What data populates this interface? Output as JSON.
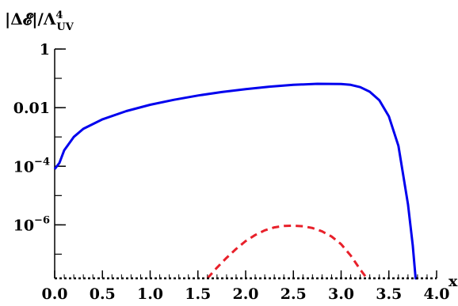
{
  "chart_data": {
    "type": "line",
    "ylabel": "|ΔE|/Λ⁴_UV",
    "ylabel_parts": {
      "main": "|Δ𝓔|/Λ",
      "sup": "4",
      "sub": "UV"
    },
    "xlabel": "x",
    "xlim": [
      0.0,
      4.0
    ],
    "ylim": [
      1.5e-08,
      1.0
    ],
    "yscale": "log",
    "grid": false,
    "x_ticks": [
      "0.0",
      "0.5",
      "1.0",
      "1.5",
      "2.0",
      "2.5",
      "3.0",
      "3.5",
      "4.0"
    ],
    "y_ticks": [
      {
        "value": 1,
        "label": "1"
      },
      {
        "value": 0.01,
        "label": "0.01"
      },
      {
        "value": 0.0001,
        "label": "10",
        "exp": "−4"
      },
      {
        "value": 1e-06,
        "label": "10",
        "exp": "−6"
      }
    ],
    "series": [
      {
        "style": "solid",
        "color": "#0000ee",
        "x": [
          0.0,
          0.05,
          0.1,
          0.2,
          0.3,
          0.5,
          0.75,
          1.0,
          1.25,
          1.5,
          1.75,
          2.0,
          2.25,
          2.5,
          2.75,
          3.0,
          3.1,
          3.2,
          3.3,
          3.4,
          3.5,
          3.6,
          3.7,
          3.75,
          3.78,
          3.8
        ],
        "y": [
          8e-05,
          0.00013,
          0.00035,
          0.001,
          0.0019,
          0.004,
          0.0076,
          0.0125,
          0.0185,
          0.026,
          0.034,
          0.043,
          0.052,
          0.06,
          0.065,
          0.064,
          0.06,
          0.05,
          0.035,
          0.018,
          0.005,
          0.0005,
          5e-06,
          2e-07,
          1.5e-08,
          1.5e-08
        ]
      },
      {
        "style": "dashed",
        "color": "#e8202a",
        "x": [
          1.6,
          1.7,
          1.8,
          1.9,
          2.0,
          2.1,
          2.2,
          2.3,
          2.4,
          2.5,
          2.6,
          2.7,
          2.8,
          2.9,
          3.0,
          3.1,
          3.2,
          3.27
        ],
        "y": [
          1.5e-08,
          3.5e-08,
          7.5e-08,
          1.5e-07,
          2.8e-07,
          4.5e-07,
          6.5e-07,
          8.2e-07,
          9.2e-07,
          9.4e-07,
          9e-07,
          7.8e-07,
          6e-07,
          4e-07,
          2.2e-07,
          9e-08,
          3e-08,
          1.5e-08
        ]
      },
      {
        "style": "dotted",
        "color": "#000000",
        "x": [
          0.0,
          4.0
        ],
        "y": [
          1.5e-08,
          1.5e-08
        ]
      }
    ]
  }
}
